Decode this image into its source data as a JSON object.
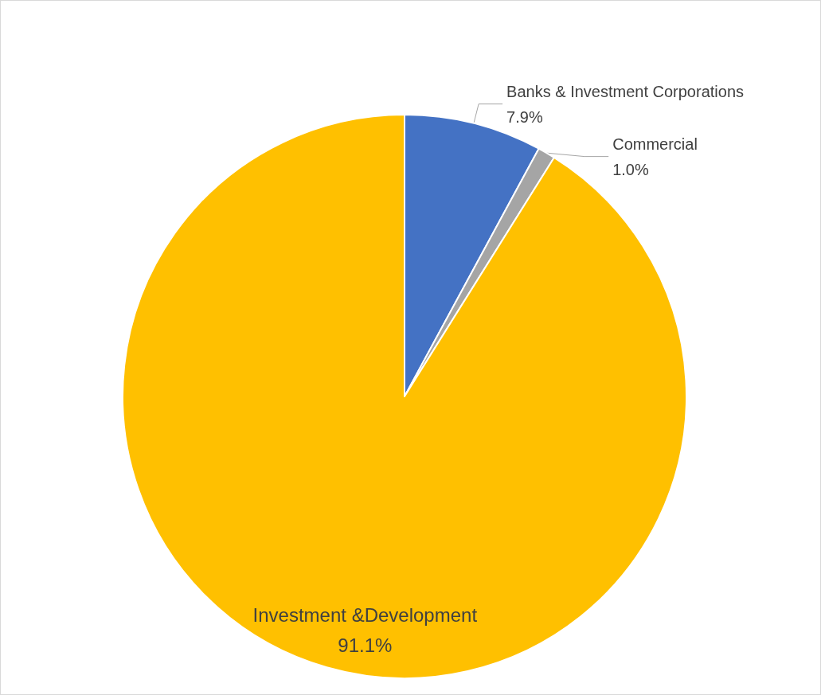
{
  "chart_data": {
    "type": "pie",
    "categories": [
      "Banks & Investment Corporations",
      "Commercial",
      "Investment &Development"
    ],
    "values": [
      7.9,
      1.0,
      91.1
    ],
    "colors": [
      "#4472c4",
      "#a5a5a5",
      "#ffc000"
    ],
    "value_labels": [
      "7.9%",
      "1.0%",
      "91.1%"
    ]
  }
}
